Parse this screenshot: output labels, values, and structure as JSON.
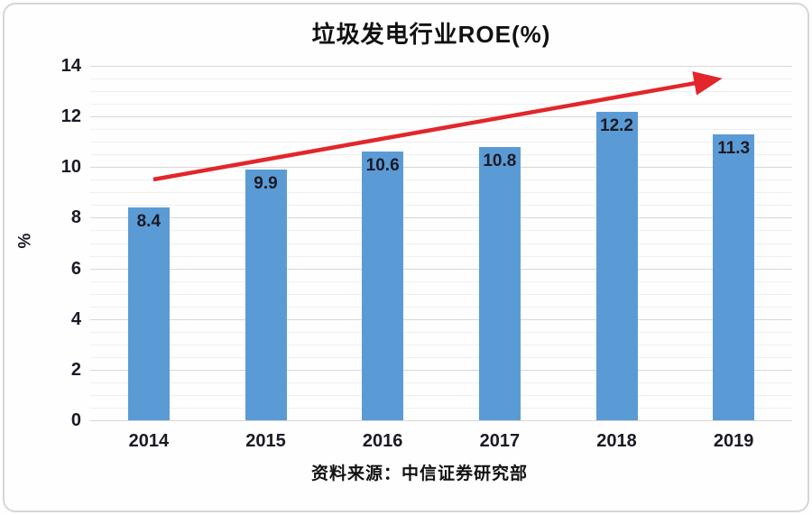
{
  "title": "垃圾发电行业ROE(%)",
  "source": "资料来源：中信证券研究部",
  "y_axis_label": "%",
  "chart_data": {
    "type": "bar",
    "categories": [
      "2014",
      "2015",
      "2016",
      "2017",
      "2018",
      "2019"
    ],
    "values": [
      8.4,
      9.9,
      10.6,
      10.8,
      12.2,
      11.3
    ],
    "title": "垃圾发电行业ROE(%)",
    "xlabel": "",
    "ylabel": "%",
    "ylim": [
      0,
      14
    ],
    "ytick_step": 2,
    "minor_grid_step": 0.5,
    "grid": true,
    "legend": "none",
    "bar_color": "#5B9BD5",
    "bar_label_color": "#1a1a26",
    "annotation": {
      "type": "trend-arrow",
      "direction": "up",
      "color": "#e2262b"
    },
    "source_note": "资料来源：中信证券研究部"
  }
}
